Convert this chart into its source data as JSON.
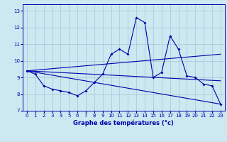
{
  "xlabel": "Graphe des températures (°c)",
  "bg_color": "#cce8f0",
  "grid_color": "#aaccdd",
  "line_color": "#0000aa",
  "xlim": [
    -0.5,
    23.5
  ],
  "ylim": [
    7.0,
    13.4
  ],
  "yticks": [
    7,
    8,
    9,
    10,
    11,
    12,
    13
  ],
  "xticks": [
    0,
    1,
    2,
    3,
    4,
    5,
    6,
    7,
    8,
    9,
    10,
    11,
    12,
    13,
    14,
    15,
    16,
    17,
    18,
    19,
    20,
    21,
    22,
    23
  ],
  "series": [
    {
      "x": [
        0,
        1,
        2,
        3,
        4,
        5,
        6,
        7,
        8,
        9,
        10,
        11,
        12,
        13,
        14,
        15,
        16,
        17,
        18,
        19,
        20,
        21,
        22,
        23
      ],
      "y": [
        9.4,
        9.2,
        8.5,
        8.3,
        8.2,
        8.1,
        7.9,
        8.2,
        8.7,
        9.2,
        10.4,
        10.7,
        10.4,
        12.6,
        12.3,
        9.0,
        9.3,
        11.5,
        10.7,
        9.1,
        9.0,
        8.6,
        8.5,
        7.4
      ],
      "marker": true
    },
    {
      "x": [
        0,
        23
      ],
      "y": [
        9.4,
        10.4
      ],
      "marker": false
    },
    {
      "x": [
        0,
        23
      ],
      "y": [
        9.4,
        8.8
      ],
      "marker": false
    },
    {
      "x": [
        0,
        23
      ],
      "y": [
        9.4,
        7.4
      ],
      "marker": false
    }
  ]
}
